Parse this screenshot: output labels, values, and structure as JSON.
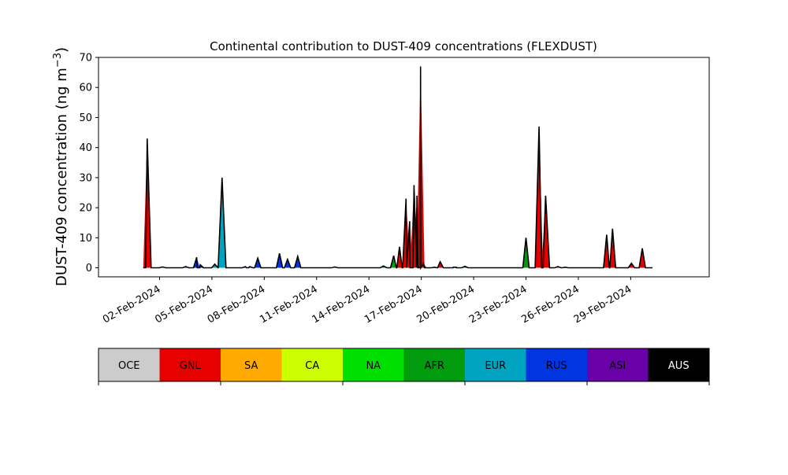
{
  "chart_data": {
    "type": "area",
    "title": "Continental contribution to DUST-409 concentrations (FLEXDUST)",
    "ylabel": "DUST-409 concentration (ng m⁻³)",
    "ylabel_main": "DUST-409 concentration (ng m",
    "ylabel_unit_exp": "−3",
    "ylabel_close": ")",
    "xlabel": "",
    "xlim": [
      "2024-01-29T12:00",
      "2024-03-04T12:00"
    ],
    "ylim": [
      -3,
      70
    ],
    "yticks": [
      0,
      10,
      20,
      30,
      40,
      50,
      60,
      70
    ],
    "xticks": [
      {
        "date": "2024-02-02",
        "label": "02-Feb-2024"
      },
      {
        "date": "2024-02-05",
        "label": "05-Feb-2024"
      },
      {
        "date": "2024-02-08",
        "label": "08-Feb-2024"
      },
      {
        "date": "2024-02-11",
        "label": "11-Feb-2024"
      },
      {
        "date": "2024-02-14",
        "label": "14-Feb-2024"
      },
      {
        "date": "2024-02-17",
        "label": "17-Feb-2024"
      },
      {
        "date": "2024-02-20",
        "label": "20-Feb-2024"
      },
      {
        "date": "2024-02-23",
        "label": "23-Feb-2024"
      },
      {
        "date": "2024-02-26",
        "label": "26-Feb-2024"
      },
      {
        "date": "2024-02-29",
        "label": "29-Feb-2024"
      }
    ],
    "grid": false,
    "legend": {
      "placement": "bottom",
      "entries": [
        {
          "label": "OCE",
          "color": "#cccccc",
          "text_color": "#000000"
        },
        {
          "label": "GNL",
          "color": "#e60000",
          "text_color": "#000000"
        },
        {
          "label": "SA",
          "color": "#ffaa00",
          "text_color": "#000000"
        },
        {
          "label": "CA",
          "color": "#ccff00",
          "text_color": "#000000"
        },
        {
          "label": "NA",
          "color": "#00e000",
          "text_color": "#000000"
        },
        {
          "label": "AFR",
          "color": "#009c0e",
          "text_color": "#000000"
        },
        {
          "label": "EUR",
          "color": "#00a4c0",
          "text_color": "#000000"
        },
        {
          "label": "RUS",
          "color": "#0035e0",
          "text_color": "#000000"
        },
        {
          "label": "ASI",
          "color": "#6a00a8",
          "text_color": "#000000"
        },
        {
          "label": "AUS",
          "color": "#000000",
          "text_color": "#ffffff"
        }
      ]
    },
    "total_color": "#000000",
    "peaks": [
      {
        "date": "2024-02-01T07:00",
        "total": 43,
        "source": "GNL"
      },
      {
        "date": "2024-02-02T04:00",
        "total": 0.3,
        "source": "GNL"
      },
      {
        "date": "2024-02-03T12:00",
        "total": 0.4,
        "source": "RUS"
      },
      {
        "date": "2024-02-04T03:00",
        "total": 3.5,
        "source": "RUS"
      },
      {
        "date": "2024-02-04T08:00",
        "total": 1.0,
        "source": "RUS"
      },
      {
        "date": "2024-02-05T04:00",
        "total": 1.2,
        "source": "EUR"
      },
      {
        "date": "2024-02-05T14:00",
        "total": 30,
        "source": "EUR"
      },
      {
        "date": "2024-02-06T22:00",
        "total": 0.4,
        "source": "RUS"
      },
      {
        "date": "2024-02-07T04:00",
        "total": 0.4,
        "source": "RUS"
      },
      {
        "date": "2024-02-07T15:00",
        "total": 3.2,
        "source": "RUS"
      },
      {
        "date": "2024-02-08T21:00",
        "total": 4.8,
        "source": "RUS"
      },
      {
        "date": "2024-02-09T08:00",
        "total": 2.8,
        "source": "RUS"
      },
      {
        "date": "2024-02-09T22:00",
        "total": 3.8,
        "source": "RUS"
      },
      {
        "date": "2024-02-12T01:00",
        "total": 0.3,
        "source": "RUS"
      },
      {
        "date": "2024-02-14T20:00",
        "total": 0.6,
        "source": "AFR"
      },
      {
        "date": "2024-02-15T10:00",
        "total": 4.0,
        "source": "AFR"
      },
      {
        "date": "2024-02-15T18:00",
        "total": 7.0,
        "source": "GNL"
      },
      {
        "date": "2024-02-16T03:00",
        "total": 23,
        "source": "GNL"
      },
      {
        "date": "2024-02-16T08:00",
        "total": 15.5,
        "source": "GNL"
      },
      {
        "date": "2024-02-16T14:00",
        "total": 27.5,
        "source": "GNL"
      },
      {
        "date": "2024-02-16T18:00",
        "total": 24,
        "source": "GNL"
      },
      {
        "date": "2024-02-16T23:00",
        "total": 67,
        "source": "GNL"
      },
      {
        "date": "2024-02-17T03:00",
        "total": 1.5,
        "source": "GNL"
      },
      {
        "date": "2024-02-17T18:00",
        "total": 0.2,
        "source": "GNL"
      },
      {
        "date": "2024-02-18T02:00",
        "total": 2.0,
        "source": "GNL"
      },
      {
        "date": "2024-02-18T20:00",
        "total": 0.2,
        "source": "AFR"
      },
      {
        "date": "2024-02-19T00:00",
        "total": 0.2,
        "source": "AFR"
      },
      {
        "date": "2024-02-19T12:00",
        "total": 0.5,
        "source": "AFR"
      },
      {
        "date": "2024-02-23T00:00",
        "total": 10,
        "source": "AFR"
      },
      {
        "date": "2024-02-23T18:00",
        "total": 47,
        "source": "GNL"
      },
      {
        "date": "2024-02-24T03:00",
        "total": 24,
        "source": "GNL"
      },
      {
        "date": "2024-02-24T20:00",
        "total": 0.4,
        "source": "GNL"
      },
      {
        "date": "2024-02-25T06:00",
        "total": 0.2,
        "source": "GNL"
      },
      {
        "date": "2024-02-27T15:00",
        "total": 11,
        "source": "GNL"
      },
      {
        "date": "2024-02-27T23:00",
        "total": 13,
        "source": "GNL"
      },
      {
        "date": "2024-02-29T01:00",
        "total": 1.5,
        "source": "GNL"
      },
      {
        "date": "2024-02-29T16:00",
        "total": 6.5,
        "source": "GNL"
      }
    ],
    "series_end": "2024-03-01T06:00"
  }
}
